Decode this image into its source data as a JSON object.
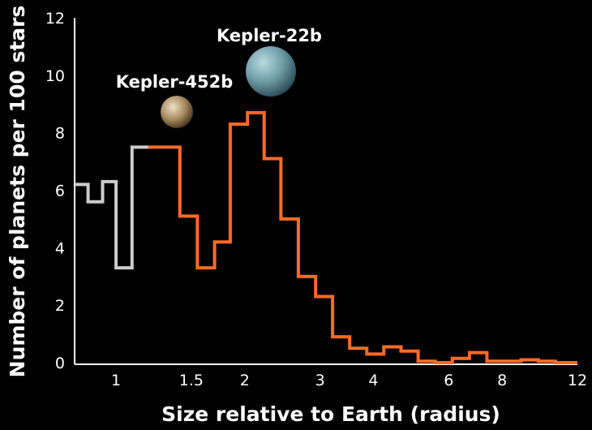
{
  "chart_data": {
    "type": "histogram-step",
    "xlabel": "Size relative to Earth (radius)",
    "ylabel": "Number of planets per 100 stars",
    "ylim": [
      0,
      12
    ],
    "x_scale": "log",
    "xlim": [
      0.8,
      12
    ],
    "x_ticks": [
      1,
      1.5,
      2,
      3,
      4,
      6,
      8,
      12
    ],
    "y_ticks": [
      0,
      2,
      4,
      6,
      8,
      10,
      12
    ],
    "grid": false,
    "series": [
      {
        "color": "#cccccc",
        "bins": [
          {
            "x0": 0.8,
            "x1": 0.86,
            "y": 6.2
          },
          {
            "x0": 0.86,
            "x1": 0.93,
            "y": 5.6
          },
          {
            "x0": 0.93,
            "x1": 1.0,
            "y": 6.3
          },
          {
            "x0": 1.0,
            "x1": 1.09,
            "y": 3.3
          },
          {
            "x0": 1.09,
            "x1": 1.19,
            "y": 7.5
          }
        ]
      },
      {
        "color": "#ff6a2a",
        "bins": [
          {
            "x0": 1.19,
            "x1": 1.41,
            "y": 7.5
          },
          {
            "x0": 1.41,
            "x1": 1.55,
            "y": 5.1
          },
          {
            "x0": 1.55,
            "x1": 1.7,
            "y": 3.3
          },
          {
            "x0": 1.7,
            "x1": 1.85,
            "y": 4.2
          },
          {
            "x0": 1.85,
            "x1": 2.03,
            "y": 8.3
          },
          {
            "x0": 2.03,
            "x1": 2.22,
            "y": 8.7
          },
          {
            "x0": 2.22,
            "x1": 2.43,
            "y": 7.1
          },
          {
            "x0": 2.43,
            "x1": 2.67,
            "y": 5.0
          },
          {
            "x0": 2.67,
            "x1": 2.93,
            "y": 3.0
          },
          {
            "x0": 2.93,
            "x1": 3.21,
            "y": 2.3
          },
          {
            "x0": 3.21,
            "x1": 3.52,
            "y": 0.9
          },
          {
            "x0": 3.52,
            "x1": 3.86,
            "y": 0.5
          },
          {
            "x0": 3.86,
            "x1": 4.23,
            "y": 0.3
          },
          {
            "x0": 4.23,
            "x1": 4.64,
            "y": 0.55
          },
          {
            "x0": 4.64,
            "x1": 5.09,
            "y": 0.4
          },
          {
            "x0": 5.09,
            "x1": 5.58,
            "y": 0.05
          },
          {
            "x0": 5.58,
            "x1": 6.12,
            "y": 0.0
          },
          {
            "x0": 6.12,
            "x1": 6.71,
            "y": 0.15
          },
          {
            "x0": 6.71,
            "x1": 7.37,
            "y": 0.35
          },
          {
            "x0": 7.37,
            "x1": 8.08,
            "y": 0.05
          },
          {
            "x0": 8.08,
            "x1": 8.86,
            "y": 0.05
          },
          {
            "x0": 8.86,
            "x1": 9.72,
            "y": 0.1
          },
          {
            "x0": 9.72,
            "x1": 10.66,
            "y": 0.05
          },
          {
            "x0": 10.66,
            "x1": 12.0,
            "y": 0.0
          }
        ]
      }
    ],
    "annotations": [
      {
        "label": "Kepler-452b",
        "x": 1.2,
        "planet_colors": [
          "#efe1c6",
          "#a88a5e",
          "#3f2e1c"
        ]
      },
      {
        "label": "Kepler-22b",
        "x": 2.2,
        "planet_colors": [
          "#b8dce0",
          "#6d9aa6",
          "#2c4b58"
        ]
      }
    ]
  }
}
